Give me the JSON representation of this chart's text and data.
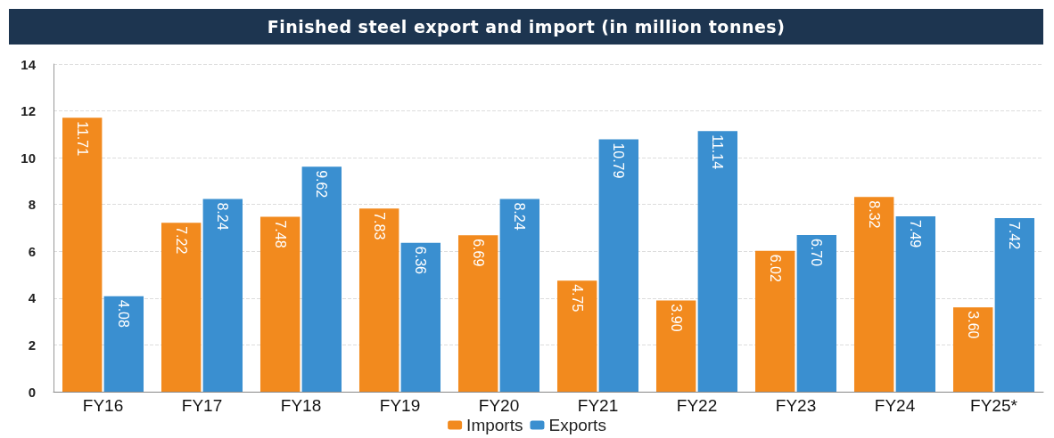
{
  "chart_data": {
    "type": "bar",
    "title": "Finished steel export and import (in million tonnes)",
    "categories": [
      "FY16",
      "FY17",
      "FY18",
      "FY19",
      "FY20",
      "FY21",
      "FY22",
      "FY23",
      "FY24",
      "FY25*"
    ],
    "series": [
      {
        "name": "Imports",
        "color": "#f28a1e",
        "values": [
          11.71,
          7.22,
          7.48,
          7.83,
          6.69,
          4.75,
          3.9,
          6.02,
          8.32,
          3.6
        ],
        "value_labels": [
          "11.71",
          "7.22",
          "7.48",
          "7.83",
          "6.69",
          "4.75",
          "3.90",
          "6.02",
          "8.32",
          "3.60"
        ]
      },
      {
        "name": "Exports",
        "color": "#3a8fd0",
        "values": [
          4.08,
          8.24,
          9.62,
          6.36,
          8.24,
          10.79,
          11.14,
          6.7,
          7.49,
          7.42
        ],
        "value_labels": [
          "4.08",
          "8.24",
          "9.62",
          "6.36",
          "8.24",
          "10.79",
          "11.14",
          "6.70",
          "7.49",
          "7.42"
        ]
      }
    ],
    "ylim": [
      0,
      14
    ],
    "yticks": [
      0,
      2,
      4,
      6,
      8,
      10,
      12,
      14
    ],
    "grid": "y",
    "legend": "bottom"
  }
}
